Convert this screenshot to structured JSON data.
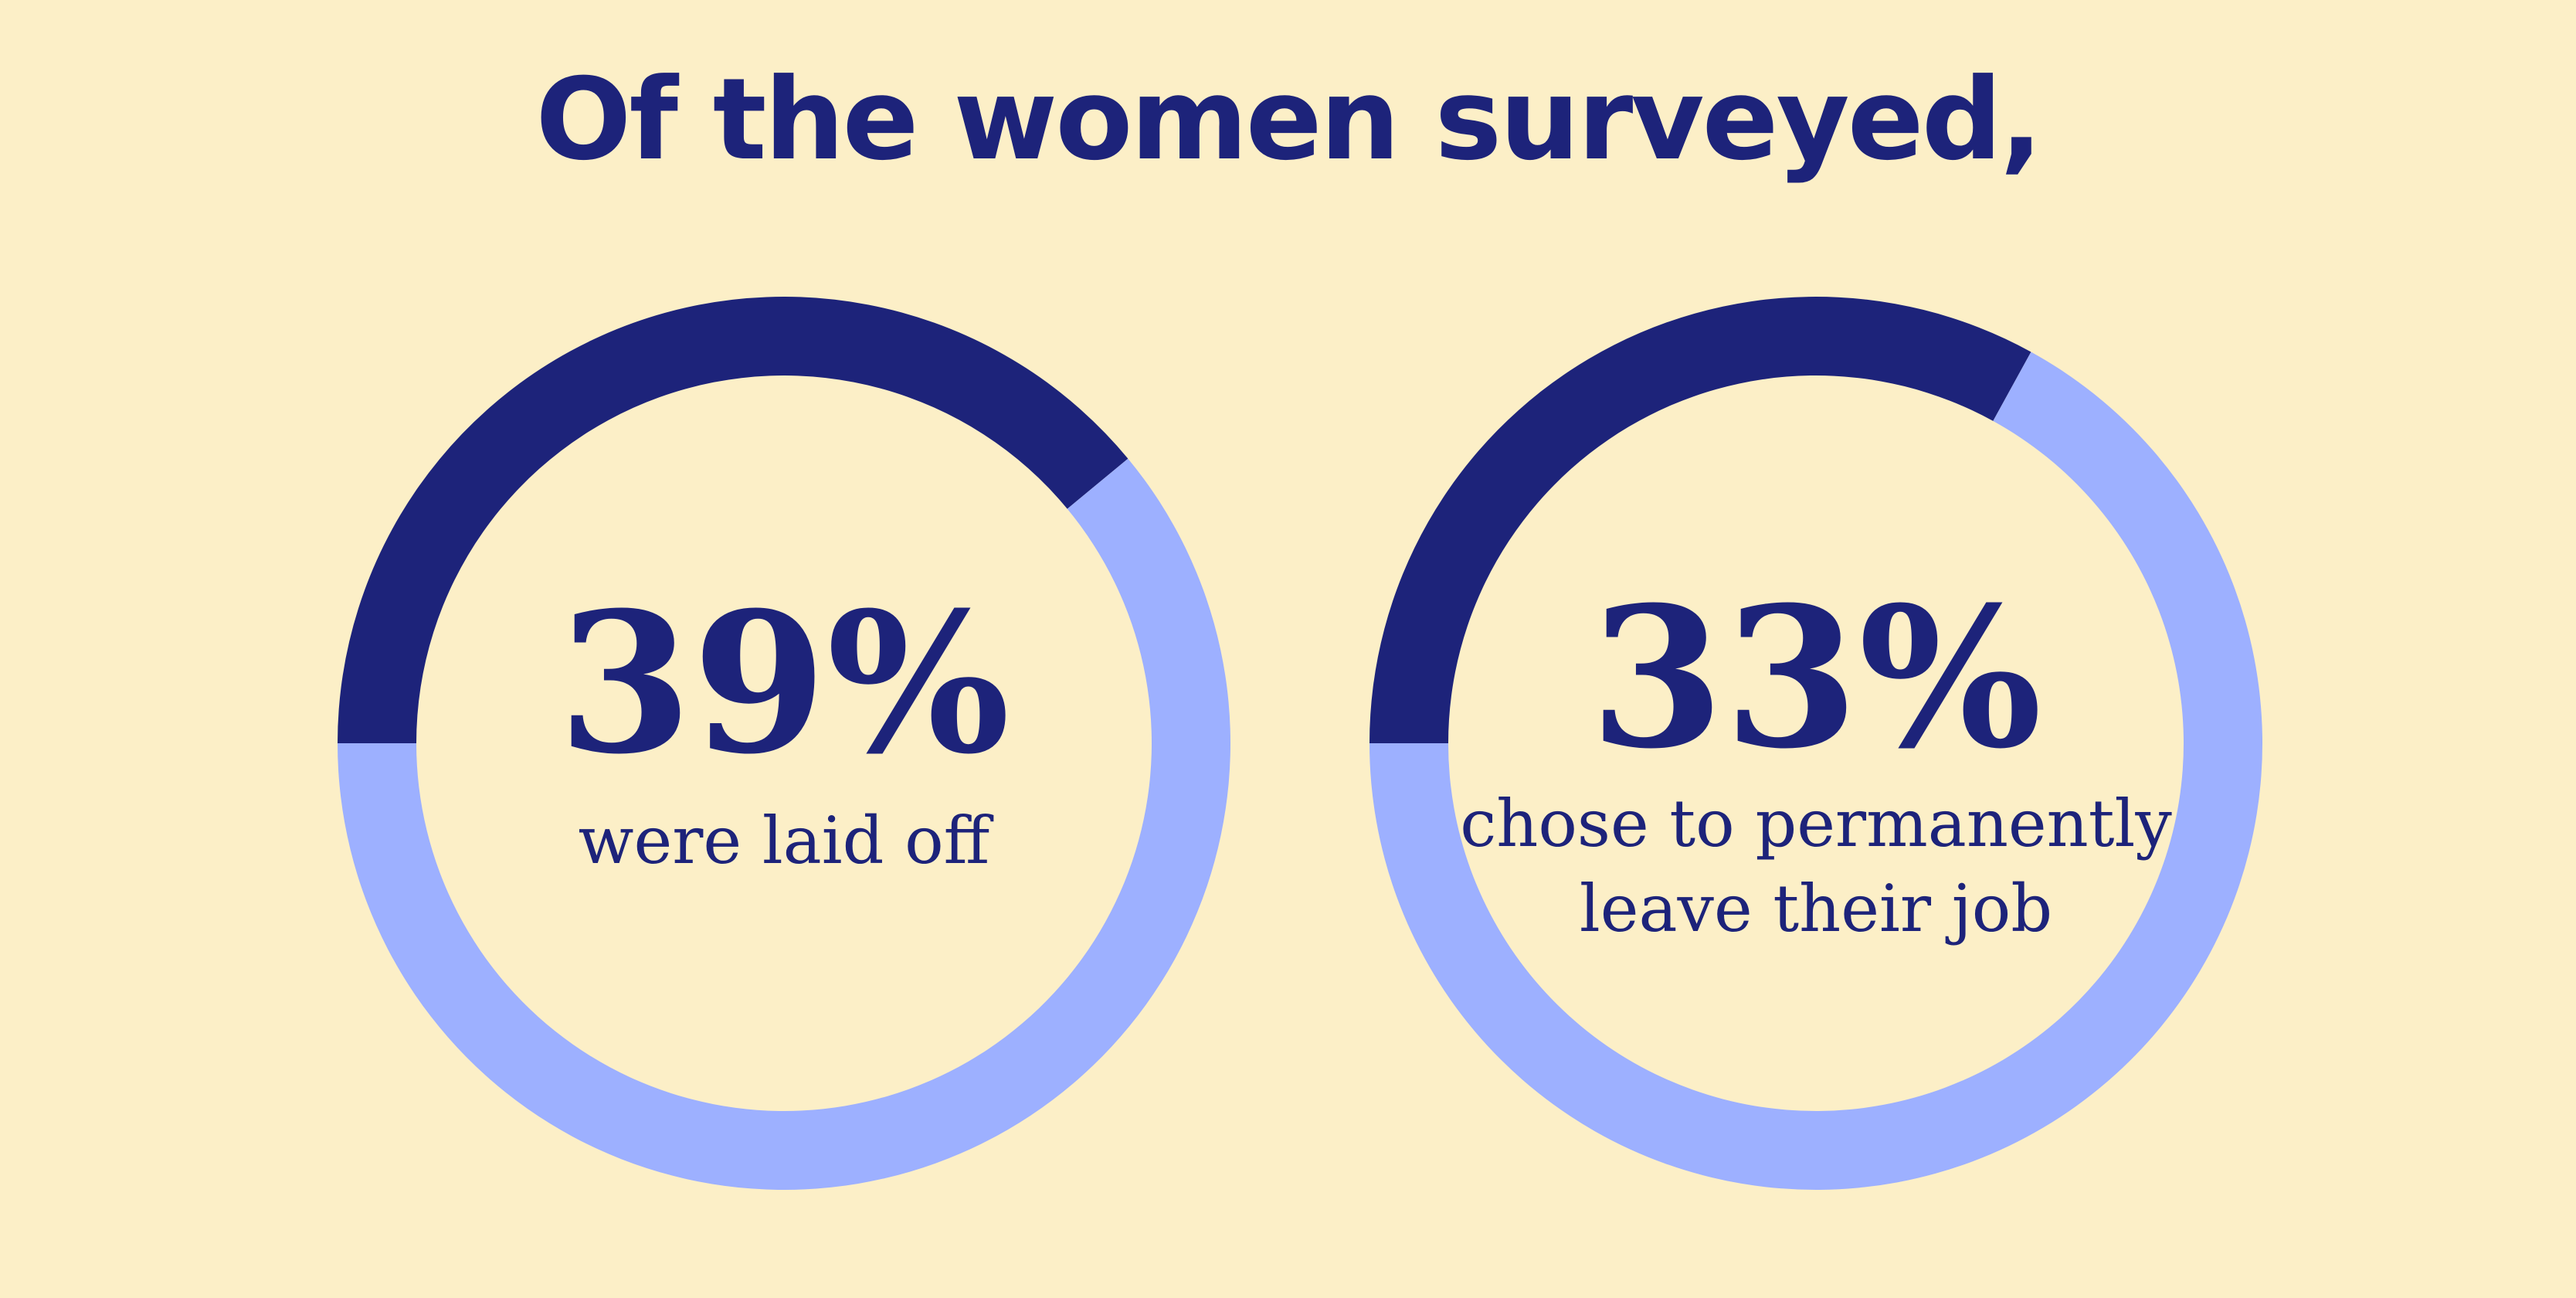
{
  "title": "Of the women surveyed,",
  "colors": {
    "background": "#fcefc7",
    "primary": "#1d237a",
    "secondary": "#9db0ff"
  },
  "chart_data": [
    {
      "type": "pie",
      "value_label": "39%",
      "values": [
        39,
        61
      ],
      "caption_lines": [
        "were laid off"
      ]
    },
    {
      "type": "pie",
      "value_label": "33%",
      "values": [
        33,
        67
      ],
      "caption_lines": [
        "chose to permanently",
        "leave their job"
      ]
    }
  ]
}
